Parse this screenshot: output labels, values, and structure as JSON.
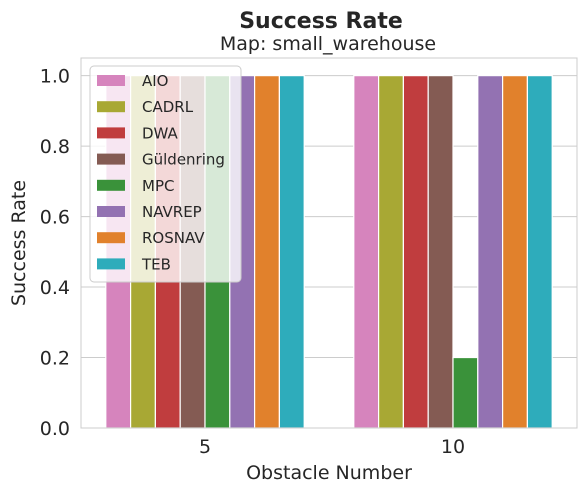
{
  "chart_data": {
    "type": "bar",
    "title": "Success Rate",
    "subtitle": "Map: small_warehouse",
    "xlabel": "Obstacle Number",
    "ylabel": "Success Rate",
    "categories": [
      "5",
      "10"
    ],
    "ylim": [
      0,
      1.05
    ],
    "yticks": [
      "0.0",
      "0.2",
      "0.4",
      "0.6",
      "0.8",
      "1.0"
    ],
    "grid": true,
    "legend_position": "top-left",
    "series": [
      {
        "name": "AIO",
        "color": "#d684bd",
        "values": [
          1.0,
          1.0
        ]
      },
      {
        "name": "CADRL",
        "color": "#a8a834",
        "values": [
          1.0,
          1.0
        ]
      },
      {
        "name": "DWA",
        "color": "#c03d3e",
        "values": [
          1.0,
          1.0
        ]
      },
      {
        "name": "Güldenring",
        "color": "#845b53",
        "values": [
          1.0,
          1.0
        ]
      },
      {
        "name": "MPC",
        "color": "#3a923a",
        "values": [
          1.0,
          0.2
        ]
      },
      {
        "name": "NAVREP",
        "color": "#9372b2",
        "values": [
          1.0,
          1.0
        ]
      },
      {
        "name": "ROSNAV",
        "color": "#e1812c",
        "values": [
          1.0,
          1.0
        ]
      },
      {
        "name": "TEB",
        "color": "#2eacbb",
        "values": [
          1.0,
          1.0
        ]
      }
    ]
  }
}
